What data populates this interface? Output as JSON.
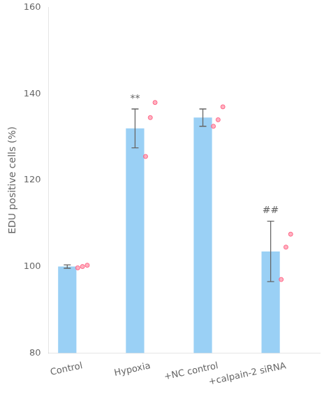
{
  "chart_data": {
    "type": "bar",
    "categories": [
      "Control",
      "Hypoxia",
      "+NC control",
      "+calpain-2 siRNA"
    ],
    "values": [
      100.0,
      132.0,
      134.5,
      103.5
    ],
    "errors": [
      0.4,
      4.5,
      2.0,
      7.0
    ],
    "points": [
      [
        99.7,
        100.0,
        100.3
      ],
      [
        125.5,
        134.5,
        138.0
      ],
      [
        132.5,
        134.0,
        137.0
      ],
      [
        97.0,
        104.5,
        107.5
      ]
    ],
    "ylabel": "EDU positive cells (%)",
    "ylim": [
      80,
      160
    ],
    "yticks": [
      80,
      100,
      120,
      140,
      160
    ],
    "annotations": [
      {
        "text": "**",
        "category": "Hypoxia"
      },
      {
        "text": "##",
        "category": "+calpain-2 siRNA"
      }
    ],
    "grid": false
  }
}
